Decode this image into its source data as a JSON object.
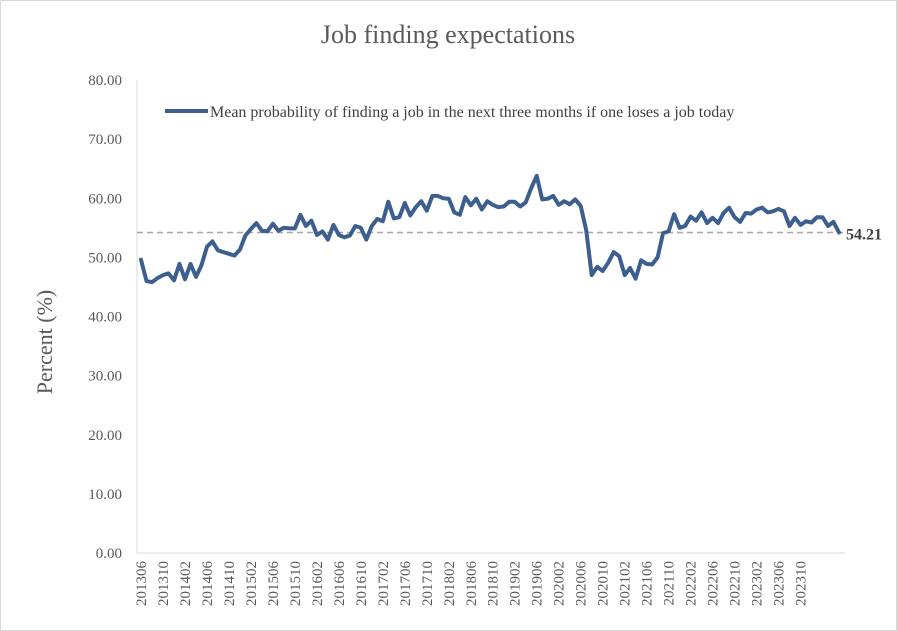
{
  "chart_data": {
    "type": "line",
    "title": "Job finding expectations",
    "ylabel": "Percent (%)",
    "xlabel": "",
    "ylim": [
      0,
      80
    ],
    "y_ticks": [
      "0.00",
      "10.00",
      "20.00",
      "30.00",
      "40.00",
      "50.00",
      "60.00",
      "70.00",
      "80.00"
    ],
    "x_tick_labels": [
      "201306",
      "201310",
      "201402",
      "201406",
      "201410",
      "201502",
      "201506",
      "201510",
      "201602",
      "201606",
      "201610",
      "201702",
      "201706",
      "201710",
      "201802",
      "201806",
      "201810",
      "201902",
      "201906",
      "202002",
      "202006",
      "202010",
      "202102",
      "202106",
      "202110",
      "202202",
      "202206",
      "202210",
      "202302",
      "202306",
      "202310"
    ],
    "grid": false,
    "legend_position": "top",
    "reference_line": {
      "value": 54.21,
      "label": "54.21",
      "style": "dashed",
      "color": "#a6a6a6"
    },
    "x_start": "2013-06",
    "series": [
      {
        "name": "Mean probability of finding a job in the next three months if one loses a job today",
        "color": "#3d5f8f",
        "values": [
          49.6,
          46.0,
          45.8,
          46.5,
          47.0,
          47.3,
          46.1,
          48.9,
          46.3,
          48.9,
          46.7,
          48.7,
          51.8,
          52.7,
          51.2,
          50.9,
          50.6,
          50.3,
          51.3,
          53.7,
          54.8,
          55.8,
          54.5,
          54.4,
          55.7,
          54.5,
          55.0,
          54.9,
          54.9,
          57.2,
          55.3,
          56.2,
          53.8,
          54.4,
          53.0,
          55.5,
          53.8,
          53.4,
          53.7,
          55.3,
          55.0,
          53.0,
          55.3,
          56.5,
          56.1,
          59.4,
          56.6,
          56.8,
          59.2,
          57.1,
          58.5,
          59.5,
          57.9,
          60.4,
          60.4,
          60.0,
          59.9,
          57.6,
          57.2,
          60.2,
          58.8,
          59.9,
          58.1,
          59.5,
          58.9,
          58.5,
          58.6,
          59.4,
          59.4,
          58.6,
          59.3,
          61.7,
          63.8,
          59.8,
          59.9,
          60.4,
          58.9,
          59.5,
          59.0,
          59.8,
          58.7,
          54.6,
          47.0,
          48.4,
          47.7,
          49.1,
          50.9,
          50.2,
          47.0,
          48.2,
          46.4,
          49.5,
          48.9,
          48.8,
          50.0,
          54.1,
          54.4,
          57.3,
          55.0,
          55.3,
          56.9,
          56.2,
          57.6,
          55.8,
          56.7,
          55.8,
          57.5,
          58.4,
          56.8,
          56.0,
          57.5,
          57.4,
          58.1,
          58.4,
          57.6,
          57.8,
          58.2,
          57.8,
          55.3,
          56.7,
          55.5,
          56.1,
          55.9,
          56.8,
          56.8,
          55.3,
          56.0,
          54.2
        ]
      }
    ]
  }
}
